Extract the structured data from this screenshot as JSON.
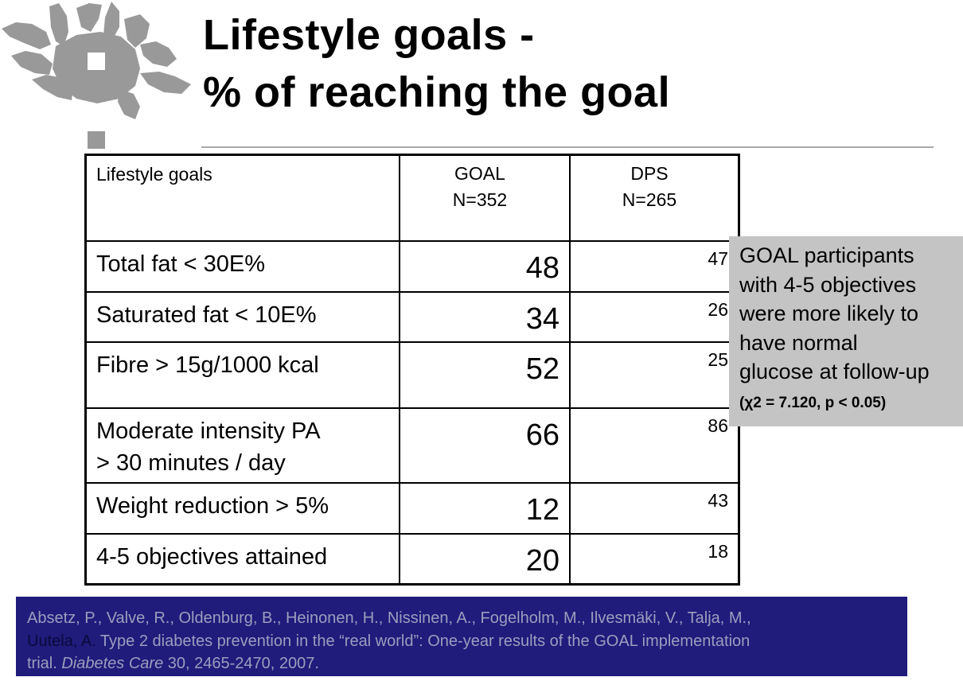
{
  "slide": {
    "title_line1": "Lifestyle goals -",
    "title_line2": "% of reaching the goal"
  },
  "table": {
    "header": {
      "col1": "Lifestyle goals",
      "col2_line1": "GOAL",
      "col2_line2": "N=352",
      "col3_line1": "DPS",
      "col3_line2": "N=265"
    },
    "rows": [
      {
        "goal": "Total fat < 30E%",
        "goal_pct": "48",
        "dps_pct": "47"
      },
      {
        "goal": "Saturated fat < 10E%",
        "goal_pct": "34",
        "dps_pct": "26"
      },
      {
        "goal": "Fibre > 15g/1000 kcal",
        "goal_pct": "52",
        "dps_pct": "25"
      },
      {
        "goal_line1": "Moderate intensity PA",
        "goal_line2": "> 30 minutes / day",
        "goal_pct": "66",
        "dps_pct": "86"
      },
      {
        "goal": "Weight reduction > 5%",
        "goal_pct": "12",
        "dps_pct": "43"
      },
      {
        "goal": "4-5 objectives attained",
        "goal_pct": "20",
        "dps_pct": "18"
      }
    ]
  },
  "note": {
    "line1": "GOAL participants",
    "line2": "with 4-5 objectives",
    "line3": "were more likely to",
    "line4": "have normal",
    "line5": "glucose at follow-up",
    "stat": "(χ2 = 7.120, p < 0.05)"
  },
  "reference": {
    "line1": "Absetz, P., Valve, R., Oldenburg, B., Heinonen, H., Nissinen, A., Fogelholm, M., Ilvesmäki, V., Talja, M.,",
    "line2_dark": "Uutela, A.",
    "line2_rest": " Type 2 diabetes prevention in the “real world”:  One-year results of the GOAL implementation",
    "line3_start": "trial. ",
    "journal": "Diabetes Care",
    "line3_end": " 30, 2465-2470, 2007."
  },
  "colors": {
    "logo": "#999999",
    "note_bg": "#c4c4c4",
    "ref_bg": "#1f1c7c",
    "ref_text": "#9d9dbd",
    "title_rule": "#a8a8a8"
  }
}
